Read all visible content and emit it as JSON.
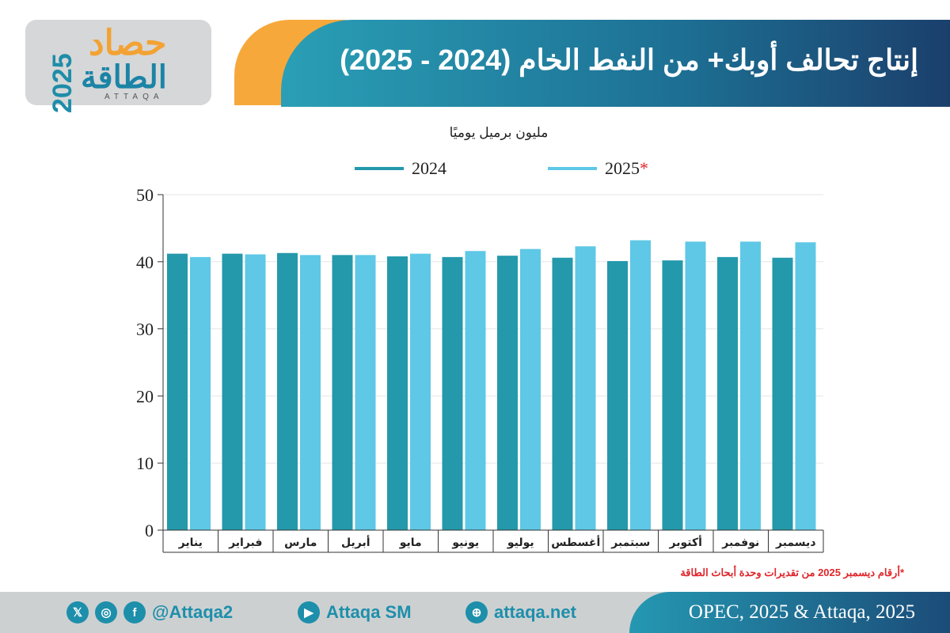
{
  "logo": {
    "year": "2025",
    "arabic_top": "حصاد",
    "arabic_bottom": "الطاقة",
    "latin": "ATTAQA"
  },
  "header": {
    "title": "إنتاج تحالف أوبك+ من النفط الخام (2024 - 2025)"
  },
  "colors": {
    "series_2024": "#2399ab",
    "series_2025": "#5ec8e6",
    "accent_orange": "#f6a83a",
    "note_red": "#e0262b"
  },
  "chart_data": {
    "type": "bar",
    "ylabel": "مليون برميل يوميًا",
    "ylim": [
      0,
      50
    ],
    "yticks": [
      0,
      10,
      20,
      30,
      40,
      50
    ],
    "legend_position": "top",
    "categories": [
      "يناير",
      "فبراير",
      "مارس",
      "أبريل",
      "مايو",
      "يونيو",
      "يوليو",
      "أغسطس",
      "سبتمبر",
      "أكتوبر",
      "نوفمبر",
      "ديسمبر"
    ],
    "series": [
      {
        "name": "2024",
        "values": [
          41.2,
          41.2,
          41.3,
          41.0,
          40.8,
          40.7,
          40.9,
          40.6,
          40.1,
          40.2,
          40.7,
          40.6
        ]
      },
      {
        "name": "2025*",
        "values": [
          40.7,
          41.1,
          41.0,
          41.0,
          41.2,
          41.6,
          41.9,
          42.3,
          43.2,
          43.0,
          43.0,
          42.9
        ]
      }
    ],
    "grid": true
  },
  "note": "*أرقام ديسمبر 2025 من تقديرات وحدة أبحاث الطاقة",
  "footer": {
    "handle": "@Attaqa2",
    "youtube": "Attaqa SM",
    "website": "attaqa.net",
    "source": "OPEC, 2025 & Attaqa, 2025",
    "icons": [
      "x-icon",
      "instagram-icon",
      "facebook-icon",
      "youtube-icon",
      "globe-icon"
    ]
  }
}
